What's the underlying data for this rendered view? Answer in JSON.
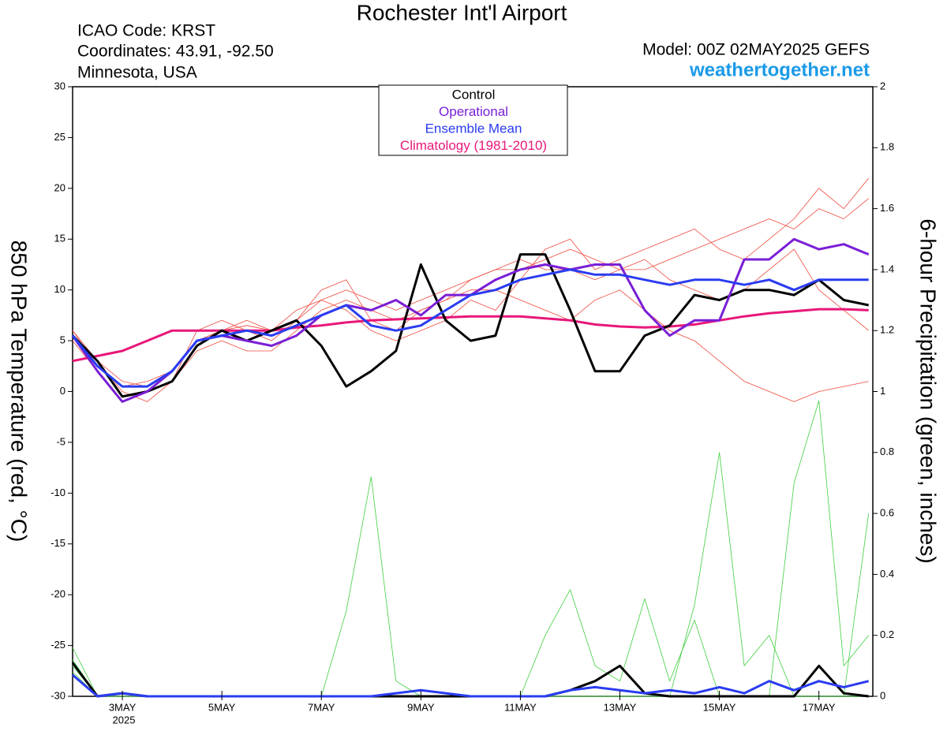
{
  "chart_data": {
    "type": "line",
    "title": "Rochester Int'l Airport",
    "icao": "ICAO Code: KRST",
    "coordinates": "Coordinates: 43.91, -92.50",
    "location": "Minnesota, USA",
    "model": "Model: 00Z 02MAY2025 GEFS",
    "source": "weathertogether.net",
    "ylabel": "850 hPa Temperature (red, °C)",
    "y2label": "6-hour Precipitation (green, inches)",
    "year_label": "2025",
    "x": [
      0,
      12,
      24,
      36,
      48,
      60,
      72,
      84,
      96,
      108,
      120,
      132,
      144,
      156,
      168,
      180,
      192,
      204,
      216,
      228,
      240,
      252,
      264,
      276,
      288,
      300,
      312,
      324,
      336,
      348,
      360,
      372,
      384
    ],
    "xlim": [
      0,
      386
    ],
    "xticks": [
      {
        "value": 24,
        "label": "3MAY"
      },
      {
        "value": 72,
        "label": "5MAY"
      },
      {
        "value": 120,
        "label": "7MAY"
      },
      {
        "value": 168,
        "label": "9MAY"
      },
      {
        "value": 216,
        "label": "11MAY"
      },
      {
        "value": 264,
        "label": "13MAY"
      },
      {
        "value": 312,
        "label": "15MAY"
      },
      {
        "value": 360,
        "label": "17MAY"
      }
    ],
    "ylim": [
      -30,
      30
    ],
    "yticks": [
      30,
      25,
      20,
      15,
      10,
      5,
      0,
      -5,
      -10,
      -15,
      -20,
      -25,
      -30
    ],
    "y2lim": [
      0,
      2
    ],
    "y2ticks": [
      2,
      1.8,
      1.6,
      1.4,
      1.2,
      1,
      0.8,
      0.6,
      0.4,
      0.2,
      0
    ],
    "series": [
      {
        "name": "Control",
        "color": "#000000",
        "values": [
          5.5,
          3,
          -0.5,
          0,
          1,
          4.5,
          6,
          5,
          6,
          7,
          4.5,
          0.5,
          2,
          4,
          12.5,
          7,
          5,
          5.5,
          13.5,
          13.5,
          8,
          2,
          2,
          5.5,
          6.5,
          9.5,
          9,
          10,
          10,
          9.5,
          11,
          9,
          8.5
        ]
      },
      {
        "name": "Operational",
        "color": "#7a1fd6",
        "values": [
          5.5,
          2,
          -1,
          0,
          2,
          5,
          5.5,
          5,
          4.5,
          5.5,
          7.5,
          8.5,
          8,
          9,
          7.5,
          9.5,
          9.5,
          11,
          12,
          12.5,
          12,
          12.5,
          12.5,
          8,
          5.5,
          7,
          7,
          13,
          13,
          15,
          14,
          14.5,
          13.5
        ]
      },
      {
        "name": "Ensemble Mean",
        "color": "#2a3cf0",
        "values": [
          5.5,
          2.5,
          0.5,
          0.5,
          2,
          5,
          5.5,
          6,
          5.5,
          6.5,
          7.5,
          8.5,
          6.5,
          6,
          6.5,
          8,
          9.5,
          10,
          11,
          11.5,
          12,
          11.5,
          11.5,
          11,
          10.5,
          11,
          11,
          10.5,
          11,
          10,
          11,
          11,
          11
        ]
      },
      {
        "name": "Climatology (1981-2010)",
        "color": "#e8177a",
        "values": [
          3,
          3.5,
          4,
          5,
          6,
          6,
          6,
          6,
          6,
          6.3,
          6.5,
          6.8,
          7,
          7.1,
          7.2,
          7.3,
          7.4,
          7.4,
          7.4,
          7.2,
          7,
          6.6,
          6.4,
          6.3,
          6.4,
          6.6,
          7,
          7.4,
          7.7,
          7.9,
          8.1,
          8.1,
          8
        ]
      }
    ],
    "precip_series": [
      {
        "color": "#000000",
        "axis": "y2",
        "values": [
          0.11,
          0,
          0.01,
          0,
          0,
          0,
          0,
          0,
          0,
          0,
          0,
          0,
          0,
          0,
          0,
          0,
          0,
          0,
          0,
          0,
          0.02,
          0.05,
          0.1,
          0.01,
          0,
          0,
          0,
          0,
          0,
          0,
          0.1,
          0.01,
          0
        ]
      },
      {
        "color": "#2a3cf0",
        "axis": "y2",
        "values": [
          0.07,
          0,
          0.01,
          0,
          0,
          0,
          0,
          0,
          0,
          0,
          0,
          0,
          0,
          0.01,
          0.02,
          0.01,
          0,
          0,
          0,
          0,
          0.02,
          0.03,
          0.02,
          0.01,
          0.02,
          0.01,
          0.03,
          0.01,
          0.05,
          0.02,
          0.05,
          0.03,
          0.05
        ]
      }
    ],
    "member_color": "#f0483c",
    "members": [
      [
        6,
        3,
        1,
        0.5,
        2,
        5,
        6,
        6.5,
        6,
        7,
        9,
        10,
        9,
        8,
        9,
        10,
        11,
        12,
        12,
        13,
        14,
        13,
        12,
        12,
        13,
        14,
        15,
        16,
        17,
        16,
        18,
        17,
        19
      ],
      [
        5,
        2,
        -1,
        0,
        1,
        4,
        5,
        4,
        4,
        6,
        8,
        9,
        8,
        7,
        8,
        9,
        10,
        10,
        9,
        8,
        7,
        9,
        10,
        8,
        6,
        5,
        3,
        1,
        0,
        -1,
        0,
        0.5,
        1
      ],
      [
        5.5,
        3,
        0,
        -1,
        1,
        6,
        7,
        6,
        5,
        7,
        10,
        11,
        7,
        6,
        8,
        9,
        11,
        12,
        13,
        12,
        12,
        11,
        12,
        13,
        11,
        10,
        9,
        10,
        12,
        14,
        10,
        8,
        6
      ],
      [
        6,
        2.5,
        0.5,
        1,
        2,
        5,
        6,
        7,
        6,
        8,
        9,
        8,
        6,
        5,
        6,
        7,
        9,
        8,
        11,
        14,
        15,
        12,
        13,
        14,
        15,
        16,
        14,
        13,
        15,
        17,
        20,
        18,
        21
      ]
    ],
    "precip_member_color": "#3fcf3f",
    "precip_members": [
      [
        0.16,
        0,
        0,
        0,
        0,
        0,
        0,
        0,
        0,
        0,
        0,
        0.28,
        0.72,
        0.05,
        0,
        0,
        0,
        0,
        0,
        0,
        0,
        0,
        0,
        0,
        0,
        0,
        0,
        0,
        0,
        0,
        0,
        0,
        0
      ],
      [
        0.1,
        0,
        0,
        0,
        0,
        0,
        0,
        0,
        0,
        0,
        0,
        0,
        0,
        0,
        0,
        0,
        0,
        0,
        0,
        0,
        0,
        0,
        0,
        0,
        0,
        0,
        0,
        0,
        0,
        0.7,
        0.97,
        0.1,
        0.2
      ],
      [
        0.08,
        0,
        0,
        0,
        0,
        0,
        0,
        0,
        0,
        0,
        0,
        0,
        0,
        0,
        0,
        0,
        0,
        0,
        0,
        0,
        0,
        0,
        0,
        0,
        0,
        0.3,
        0.8,
        0.1,
        0.2,
        0,
        0,
        0,
        0.6
      ],
      [
        0.12,
        0,
        0,
        0,
        0,
        0,
        0,
        0,
        0,
        0,
        0,
        0,
        0,
        0,
        0,
        0,
        0,
        0,
        0,
        0.2,
        0.35,
        0.1,
        0.05,
        0.32,
        0.05,
        0.25,
        0,
        0,
        0,
        0,
        0,
        0,
        0
      ]
    ]
  }
}
